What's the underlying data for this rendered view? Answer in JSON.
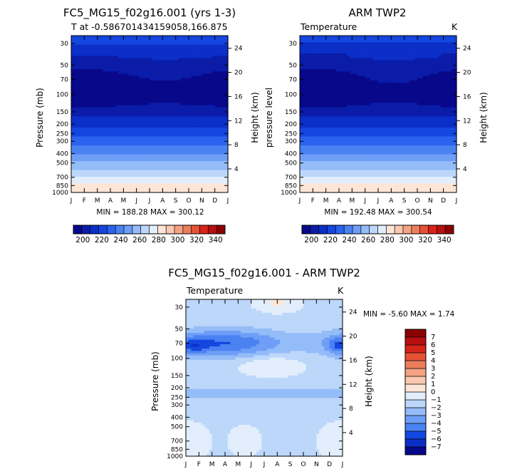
{
  "chart_data": [
    {
      "type": "heatmap",
      "id": "p1",
      "title": "FC5_MG15_f02g16.001 (yrs 1-3)",
      "subtitle_left": "T at -0.586701434159058,166.875",
      "subtitle_right": "",
      "xlabel": "",
      "ylabel": "Pressure (mb)",
      "ylabel_right": "Height (km)",
      "x_ticks": [
        "J",
        "F",
        "M",
        "A",
        "M",
        "J",
        "J",
        "A",
        "S",
        "O",
        "N",
        "D",
        "J"
      ],
      "y_ticks": [
        30,
        50,
        70,
        100,
        150,
        200,
        250,
        300,
        400,
        500,
        700,
        850,
        1000
      ],
      "y_range_mb": [
        25,
        1000
      ],
      "height_ticks_km": [
        4,
        8,
        12,
        16,
        20,
        24
      ],
      "stats": "MIN = 188.28 MAX = 300.12",
      "colorbar_ticks": [
        200,
        220,
        240,
        260,
        280,
        300,
        320,
        340
      ],
      "colorbar_range": [
        190,
        350
      ],
      "field": "temperature",
      "units": "K"
    },
    {
      "type": "heatmap",
      "id": "p2",
      "title": "ARM TWP2",
      "subtitle_left": "Temperature",
      "subtitle_right": "K",
      "xlabel": "",
      "ylabel": "pressure level",
      "ylabel_right": "Height (km)",
      "x_ticks": [
        "J",
        "F",
        "M",
        "A",
        "M",
        "J",
        "J",
        "A",
        "S",
        "O",
        "N",
        "D",
        "J"
      ],
      "y_ticks": [
        30,
        50,
        70,
        100,
        150,
        200,
        250,
        300,
        400,
        500,
        700,
        850,
        1000
      ],
      "y_range_mb": [
        25,
        1000
      ],
      "height_ticks_km": [
        4,
        8,
        12,
        16,
        20,
        24
      ],
      "stats": "MIN = 192.48 MAX = 300.54",
      "colorbar_ticks": [
        200,
        220,
        240,
        260,
        280,
        300,
        320,
        340
      ],
      "colorbar_range": [
        190,
        350
      ],
      "field": "temperature",
      "units": "K"
    },
    {
      "type": "heatmap",
      "id": "p3",
      "title": "FC5_MG15_f02g16.001 - ARM TWP2",
      "subtitle_left": "Temperature",
      "subtitle_right": "K",
      "xlabel": "",
      "ylabel": "Pressure (mb)",
      "ylabel_right": "Height (km)",
      "x_ticks": [
        "J",
        "F",
        "M",
        "A",
        "M",
        "J",
        "J",
        "A",
        "S",
        "O",
        "N",
        "D",
        "J"
      ],
      "y_ticks": [
        30,
        50,
        70,
        100,
        150,
        200,
        250,
        300,
        400,
        500,
        700,
        850,
        1000
      ],
      "y_range_mb": [
        25,
        1000
      ],
      "height_ticks_km": [
        4,
        8,
        12,
        16,
        20,
        24
      ],
      "stats": "MIN =   -5.60 MAX =    1.74",
      "colorbar_labels": [
        7,
        6,
        5,
        4,
        3,
        2,
        1,
        0,
        -1,
        -2,
        -3,
        -4,
        -5,
        -6,
        -7
      ],
      "field": "temperature difference",
      "units": "K"
    }
  ],
  "colors": {
    "temp_palette": [
      "#08088a",
      "#0a1ca8",
      "#0c2fc8",
      "#1446e0",
      "#2a63ee",
      "#4a82f2",
      "#6e9ef6",
      "#94bcf8",
      "#bcd7fa",
      "#e2eefc",
      "#fde5d6",
      "#fac8b0",
      "#f4a384",
      "#ec7e5c",
      "#e65236",
      "#d62418",
      "#b81010",
      "#8b0000"
    ],
    "diff_palette": [
      "#8b0000",
      "#b81010",
      "#d62418",
      "#e65236",
      "#ec7e5c",
      "#f4a384",
      "#fac8b0",
      "#fde5d6",
      "#e2eefc",
      "#bcd7fa",
      "#94bcf8",
      "#6e9ef6",
      "#4a82f2",
      "#1446e0",
      "#0c2fc8",
      "#08088a"
    ]
  }
}
